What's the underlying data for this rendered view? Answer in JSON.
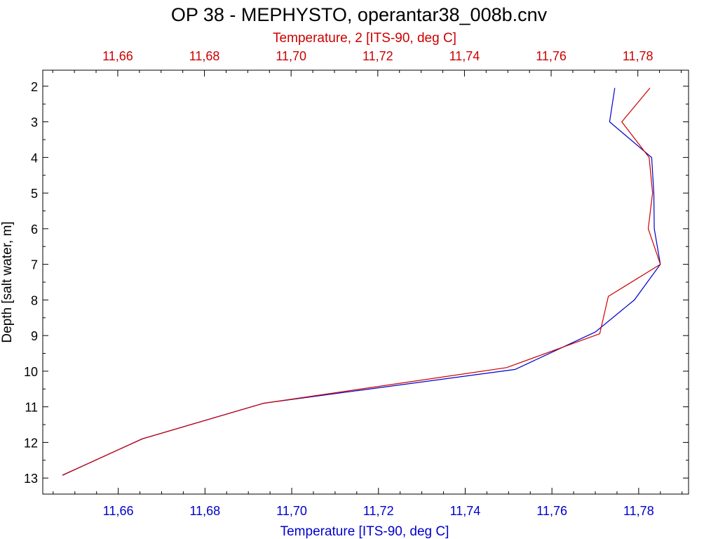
{
  "colors": {
    "primary": "#0000cc",
    "secondary": "#cc0000",
    "axis": "#000000"
  },
  "chart_data": {
    "type": "line",
    "title": "OP 38 - MEPHYSTO, operantar38_008b.cnv",
    "ylabel": "Depth [salt water, m]",
    "ylim": [
      1.55,
      13.45
    ],
    "y_inverted": true,
    "yticks": [
      {
        "value": 2,
        "label": "2"
      },
      {
        "value": 3,
        "label": "3"
      },
      {
        "value": 4,
        "label": "4"
      },
      {
        "value": 5,
        "label": "5"
      },
      {
        "value": 6,
        "label": "6"
      },
      {
        "value": 7,
        "label": "7"
      },
      {
        "value": 8,
        "label": "8"
      },
      {
        "value": 9,
        "label": "9"
      },
      {
        "value": 10,
        "label": "10"
      },
      {
        "value": 11,
        "label": "11"
      },
      {
        "value": 12,
        "label": "12"
      },
      {
        "value": 13,
        "label": "13"
      }
    ],
    "bottom_axis": {
      "label": "Temperature [ITS-90, deg C]",
      "range": [
        11.6426,
        11.7915
      ],
      "ticks": [
        {
          "value": 11.66,
          "label": "11,66"
        },
        {
          "value": 11.68,
          "label": "11,68"
        },
        {
          "value": 11.7,
          "label": "11,70"
        },
        {
          "value": 11.72,
          "label": "11,72"
        },
        {
          "value": 11.74,
          "label": "11,74"
        },
        {
          "value": 11.76,
          "label": "11,76"
        },
        {
          "value": 11.78,
          "label": "11,78"
        }
      ]
    },
    "top_axis": {
      "label": "Temperature, 2 [ITS-90, deg C]",
      "range": [
        11.6427,
        11.7917
      ],
      "ticks": [
        {
          "value": 11.66,
          "label": "11,66"
        },
        {
          "value": 11.68,
          "label": "11,68"
        },
        {
          "value": 11.7,
          "label": "11,70"
        },
        {
          "value": 11.72,
          "label": "11,72"
        },
        {
          "value": 11.74,
          "label": "11,74"
        },
        {
          "value": 11.76,
          "label": "11,76"
        },
        {
          "value": 11.78,
          "label": "11,78"
        }
      ]
    },
    "series": [
      {
        "name": "Temperature [ITS-90, deg C]",
        "axis": "bottom",
        "color": "#0000cc",
        "points": [
          {
            "x": 11.7745,
            "y": 2.05
          },
          {
            "x": 11.7733,
            "y": 3.0
          },
          {
            "x": 11.783,
            "y": 4.0
          },
          {
            "x": 11.7835,
            "y": 5.0
          },
          {
            "x": 11.7836,
            "y": 6.0
          },
          {
            "x": 11.785,
            "y": 7.0
          },
          {
            "x": 11.779,
            "y": 8.0
          },
          {
            "x": 11.77,
            "y": 8.9
          },
          {
            "x": 11.7515,
            "y": 9.95
          },
          {
            "x": 11.6935,
            "y": 10.9
          },
          {
            "x": 11.6655,
            "y": 11.9
          },
          {
            "x": 11.6472,
            "y": 12.92
          }
        ]
      },
      {
        "name": "Temperature, 2 [ITS-90, deg C]",
        "axis": "top",
        "color": "#cc0000",
        "points": [
          {
            "x": 11.7828,
            "y": 2.05
          },
          {
            "x": 11.7763,
            "y": 3.0
          },
          {
            "x": 11.7826,
            "y": 4.0
          },
          {
            "x": 11.7834,
            "y": 5.0
          },
          {
            "x": 11.7824,
            "y": 6.0
          },
          {
            "x": 11.7852,
            "y": 7.0
          },
          {
            "x": 11.7732,
            "y": 7.9
          },
          {
            "x": 11.7712,
            "y": 8.95
          },
          {
            "x": 11.7497,
            "y": 9.9
          },
          {
            "x": 11.6937,
            "y": 10.9
          },
          {
            "x": 11.6657,
            "y": 11.9
          },
          {
            "x": 11.6472,
            "y": 12.92
          }
        ]
      }
    ]
  }
}
